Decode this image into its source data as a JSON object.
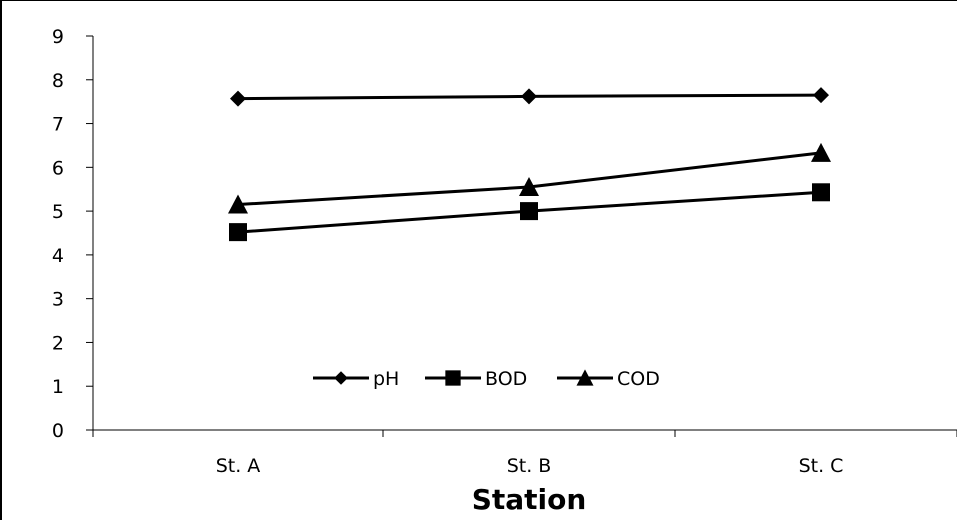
{
  "chart_data": {
    "type": "line",
    "title": "",
    "xlabel": "Station",
    "ylabel": "",
    "categories": [
      "St. A",
      "St. B",
      "St. C"
    ],
    "ylim": [
      0,
      9
    ],
    "yticks": [
      "0",
      "1",
      "2",
      "3",
      "4",
      "5",
      "6",
      "7",
      "8",
      "9"
    ],
    "grid": false,
    "legend_position": "bottom-center (inside plot)",
    "series": [
      {
        "name": "pH",
        "marker": "diamond",
        "color": "#000000",
        "values": [
          7.57,
          7.62,
          7.65
        ]
      },
      {
        "name": "BOD",
        "marker": "square",
        "color": "#000000",
        "values": [
          4.52,
          5.0,
          5.43
        ]
      },
      {
        "name": "COD",
        "marker": "triangle",
        "color": "#000000",
        "values": [
          5.15,
          5.55,
          6.33
        ]
      }
    ]
  }
}
